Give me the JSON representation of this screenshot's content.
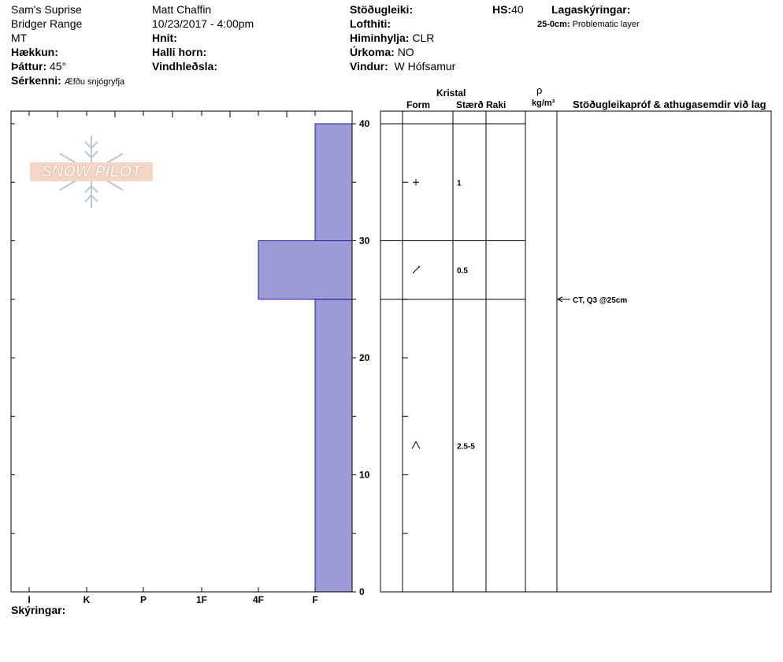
{
  "header": {
    "location": "Sam's Suprise",
    "range": "Bridger Range",
    "state": "MT",
    "elevation_label": "Hækkun:",
    "aspect_label": "Þáttur:",
    "aspect_value": "45°",
    "features_label": "Sérkenni:",
    "features_value": "Æfðu snjógryfja",
    "observer": "Matt Chaffin",
    "datetime": "10/23/2017 - 4:00pm",
    "coords_label": "Hnit:",
    "slope_label": "Halli horn:",
    "wind_loading_label": "Vindhleðsla:",
    "stability_label": "Stöðugleiki:",
    "air_temp_label": "Lofthiti:",
    "sky_label": "Himinhylja:",
    "sky_value": "CLR",
    "precip_label": "Úrkoma:",
    "precip_value": "NO",
    "wind_label": "Vindur:",
    "wind_value": "W Hófsamur",
    "hs_label": "HS:",
    "hs_value": "40",
    "layer_notes_label": "Lagaskýringar:",
    "layer_note_range": "25-0cm:",
    "layer_note_text": "Problematic layer"
  },
  "logo": {
    "text": "SNOW PILOT"
  },
  "table_header": {
    "crystal": "Kristal",
    "form": "Form",
    "size": "Stærð",
    "moisture": "Raki",
    "density_symbol": "ρ",
    "density_unit": "kg/m³",
    "stability_col": "Stöðugleikapróf & athugasemdir við lag"
  },
  "footer": {
    "notes_label": "Skýringar:"
  },
  "colors": {
    "bar_fill": "#9d9bd6",
    "bar_stroke": "#1a1aa0"
  },
  "chart_data": {
    "type": "bar",
    "orientation": "horizontal-steps",
    "x_categories": [
      "I",
      "K",
      "P",
      "1F",
      "4F",
      "F"
    ],
    "y_ticks": [
      0,
      10,
      20,
      30,
      40
    ],
    "ylim": [
      0,
      40
    ],
    "layers": [
      {
        "top": 40,
        "bottom": 30,
        "hardness": "F",
        "form_icon": "plus",
        "size": "1"
      },
      {
        "top": 30,
        "bottom": 25,
        "hardness": "4F",
        "form_icon": "slash-dots",
        "size": "0.5"
      },
      {
        "top": 25,
        "bottom": 0,
        "hardness": "F",
        "form_icon": "caret",
        "size": "2.5-5"
      }
    ],
    "tests": [
      {
        "depth": 25,
        "label": "CT, Q3 @25cm"
      }
    ]
  }
}
